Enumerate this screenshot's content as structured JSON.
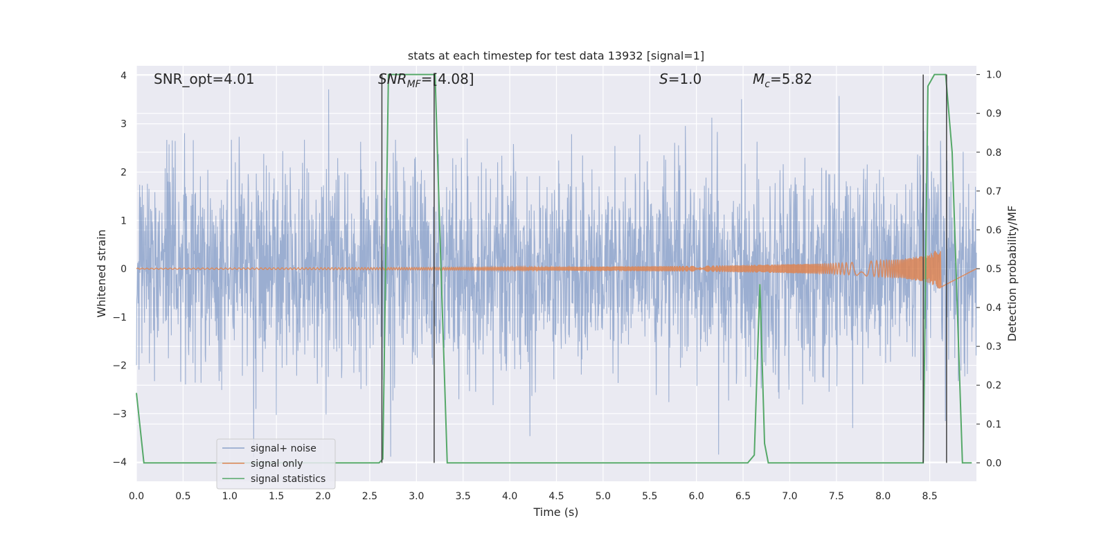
{
  "chart_data": {
    "type": "line",
    "title": "stats at each timestep for test data 13932 [signal=1]",
    "xlabel": "Time (s)",
    "ylabel_left": "Whitened strain",
    "ylabel_right": "Detection probability/MF",
    "xlim": [
      0,
      9.0
    ],
    "ylim_left": [
      -4.4,
      4.2
    ],
    "ylim_right": [
      -0.0475,
      1.0225
    ],
    "x_ticks": [
      "0.0",
      "0.5",
      "1.0",
      "1.5",
      "2.0",
      "2.5",
      "3.0",
      "3.5",
      "4.0",
      "4.5",
      "5.0",
      "5.5",
      "6.0",
      "6.5",
      "7.0",
      "7.5",
      "8.0",
      "8.5"
    ],
    "y_left_ticks": [
      "4",
      "3",
      "2",
      "1",
      "0",
      "−1",
      "−2",
      "−3",
      "−4"
    ],
    "y_right_ticks": [
      "1.0",
      "0.9",
      "0.8",
      "0.7",
      "0.6",
      "0.5",
      "0.4",
      "0.3",
      "0.2",
      "0.1",
      "0.0"
    ],
    "grid": true,
    "legend_position": "lower-left",
    "annotations": {
      "snr_opt": "SNR_opt=4.01",
      "snr_mf_main": "SNR",
      "snr_mf_sub": "MF",
      "snr_mf_value": "=[4.08]",
      "s_symbol": "S",
      "s_value": "=1.0",
      "mc_symbol": "M",
      "mc_sub": "c",
      "mc_value": "=5.82"
    },
    "series": [
      {
        "name": "signal+ noise",
        "color": "#4c72b0",
        "style": "noise band, roughly between −2.5 and 2.5 with peaks near ±3.8",
        "envelope": [
          -2.5,
          2.5
        ]
      },
      {
        "name": "signal only",
        "color": "#dd8452",
        "style": "chirp growing to about ±0.45 near 8.6 s",
        "envelope": [
          [
            0.0,
            0.01
          ],
          [
            4.0,
            0.03
          ],
          [
            6.0,
            0.06
          ],
          [
            7.5,
            0.11
          ],
          [
            8.2,
            0.2
          ],
          [
            8.5,
            0.3
          ],
          [
            8.62,
            0.45
          ]
        ]
      },
      {
        "name": "signal statistics",
        "color": "#55a868",
        "x": [
          0.0,
          0.08,
          0.15,
          2.6,
          2.64,
          2.7,
          3.2,
          3.25,
          3.33,
          6.55,
          6.62,
          6.68,
          6.73,
          6.77,
          8.43,
          8.48,
          8.55,
          8.67,
          8.74,
          8.85,
          8.95
        ],
        "y": [
          0.18,
          0.0,
          0.0,
          0.0,
          0.01,
          1.0,
          1.0,
          0.6,
          0.0,
          0.0,
          0.02,
          0.46,
          0.05,
          0.0,
          0.0,
          0.97,
          1.0,
          1.0,
          0.8,
          0.0,
          0.0
        ]
      }
    ],
    "marker_lines_at": [
      2.63,
      3.19,
      8.43,
      8.68
    ]
  }
}
